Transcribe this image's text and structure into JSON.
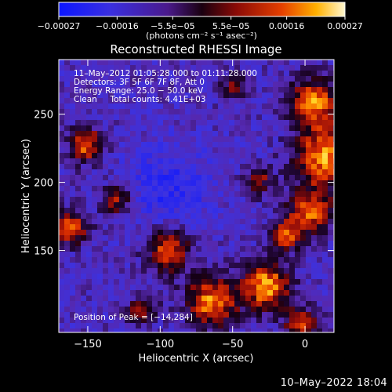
{
  "chart_data": {
    "type": "heatmap",
    "title": "Reconstructed RHESSI Image",
    "xlabel": "Heliocentric X (arcsec)",
    "ylabel": "Heliocentric Y (arcsec)",
    "xlim": [
      -170,
      20
    ],
    "ylim": [
      90,
      290
    ],
    "x_ticks": [
      -150,
      -100,
      -50,
      0
    ],
    "y_ticks": [
      150,
      200,
      250
    ],
    "x_tick_labels": [
      "−150",
      "−100",
      "−50",
      "0"
    ],
    "y_tick_labels": [
      "150",
      "200",
      "250"
    ],
    "colorbar": {
      "range": [
        -0.00027,
        0.00027
      ],
      "ticks": [
        -0.00027,
        -0.00016,
        -5.5e-05,
        5.5e-05,
        0.00016,
        0.00027
      ],
      "tick_labels": [
        "−0.00027",
        "−0.00016",
        "−5.5e−05",
        "5.5e−05",
        "0.00016",
        "0.00027"
      ],
      "unit_label": "(photons cm⁻² s⁻¹ asec⁻²)",
      "colormap": "blue-purple-red-yellow-white"
    },
    "annotations": {
      "time_range": "11–May–2012 01:05:28.000 to 01:11:28.000",
      "detectors": "Detectors: 3F 5F 6F 7F 8F, Att 0",
      "energy_range": "Energy Range: 25.0 − 50.0 keV",
      "clean_counts": "Clean     Total counts: 4.41E+03",
      "peak": "Position of Peak = [−14,284]"
    },
    "peak_position": [
      -14,
      284
    ],
    "grid": false
  },
  "footer": {
    "timestamp": "10–May–2022 18:04"
  }
}
